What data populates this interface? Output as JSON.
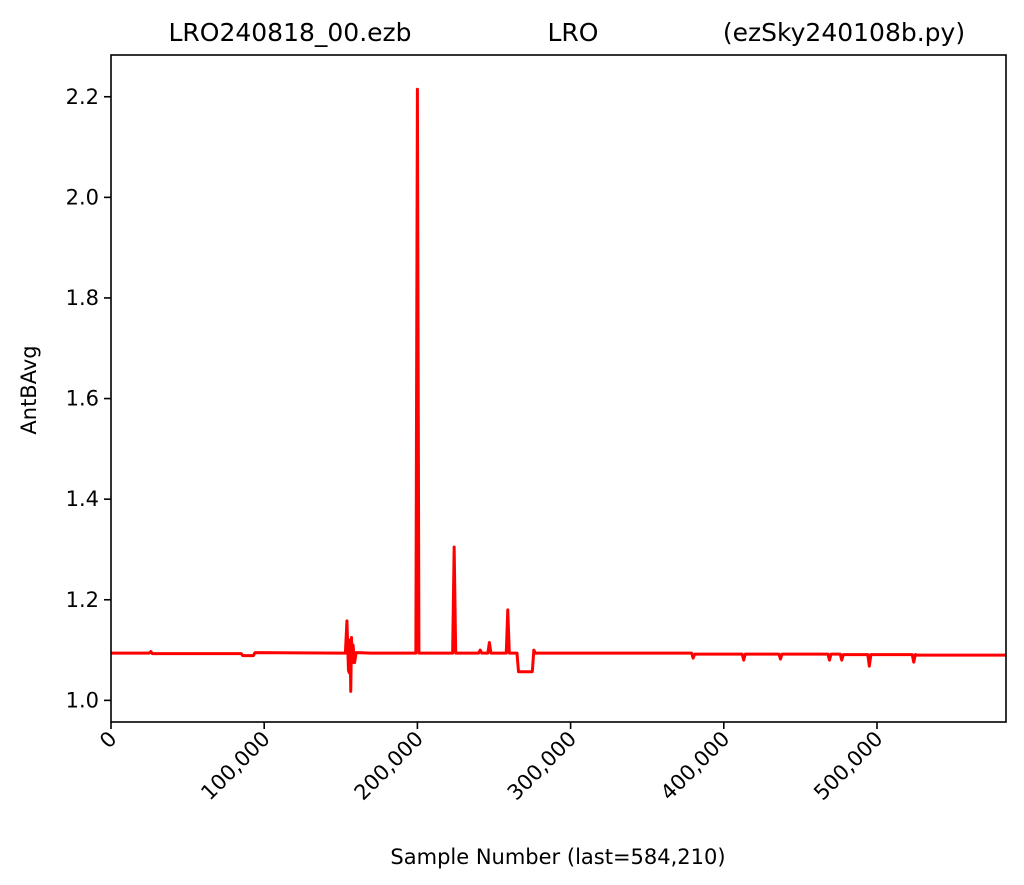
{
  "chart_data": {
    "type": "line",
    "title": {
      "left": "LRO240818_00.ezb",
      "center": "LRO",
      "right": "(ezSky240108b.py)"
    },
    "xlabel": "Sample Number (last=584,210)",
    "ylabel": "AntBAvg",
    "xlim": [
      0,
      584210
    ],
    "ylim": [
      0.957,
      2.283
    ],
    "x_ticks": [
      {
        "value": 0,
        "label": "0"
      },
      {
        "value": 100000,
        "label": "100,000"
      },
      {
        "value": 200000,
        "label": "200,000"
      },
      {
        "value": 300000,
        "label": "300,000"
      },
      {
        "value": 400000,
        "label": "400,000"
      },
      {
        "value": 500000,
        "label": "500,000"
      }
    ],
    "y_ticks": [
      {
        "value": 1.0,
        "label": "1.0"
      },
      {
        "value": 1.2,
        "label": "1.2"
      },
      {
        "value": 1.4,
        "label": "1.4"
      },
      {
        "value": 1.6,
        "label": "1.6"
      },
      {
        "value": 1.8,
        "label": "1.8"
      },
      {
        "value": 2.0,
        "label": "2.0"
      },
      {
        "value": 2.2,
        "label": "2.2"
      }
    ],
    "grid": false,
    "series": [
      {
        "color": "#ff0000",
        "x": [
          0,
          25000,
          26000,
          27000,
          85000,
          86000,
          93000,
          94000,
          150000,
          153000,
          154000,
          155000,
          155500,
          156000,
          156500,
          157000,
          157500,
          158000,
          159000,
          160000,
          170000,
          199000,
          200000,
          201000,
          202000,
          223000,
          224000,
          225000,
          226000,
          240000,
          241000,
          242000,
          246000,
          247000,
          248000,
          258000,
          259000,
          260000,
          261000,
          265000,
          266000,
          267000,
          274000,
          275000,
          276000,
          277000,
          278000,
          280000,
          300000,
          340000,
          379000,
          380000,
          381000,
          412000,
          413000,
          414000,
          436000,
          437000,
          438000,
          468000,
          469000,
          470000,
          476000,
          477000,
          478000,
          494000,
          495000,
          496000,
          497000,
          523000,
          524000,
          525000,
          526000,
          550000,
          584210
        ],
        "y": [
          1.094,
          1.094,
          1.097,
          1.093,
          1.093,
          1.089,
          1.089,
          1.095,
          1.094,
          1.094,
          1.158,
          1.06,
          1.055,
          1.12,
          1.018,
          1.125,
          1.075,
          1.11,
          1.075,
          1.095,
          1.094,
          1.094,
          2.215,
          1.094,
          1.094,
          1.094,
          1.305,
          1.094,
          1.094,
          1.094,
          1.1,
          1.094,
          1.094,
          1.115,
          1.094,
          1.094,
          1.18,
          1.094,
          1.094,
          1.094,
          1.057,
          1.057,
          1.057,
          1.057,
          1.1,
          1.094,
          1.094,
          1.094,
          1.094,
          1.094,
          1.094,
          1.084,
          1.092,
          1.092,
          1.08,
          1.092,
          1.092,
          1.082,
          1.092,
          1.092,
          1.08,
          1.092,
          1.092,
          1.08,
          1.091,
          1.091,
          1.068,
          1.091,
          1.091,
          1.091,
          1.076,
          1.091,
          1.09,
          1.09,
          1.09
        ]
      }
    ]
  }
}
